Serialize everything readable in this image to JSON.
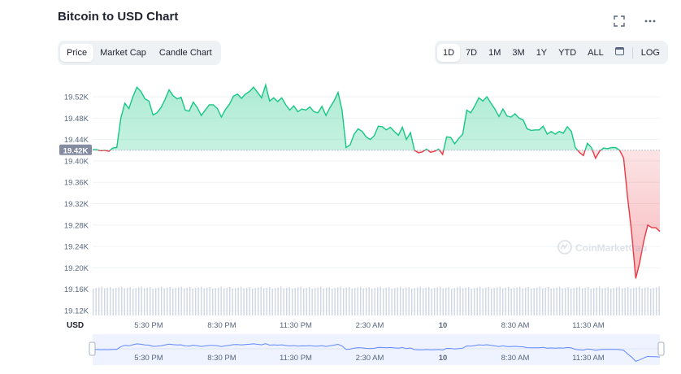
{
  "header": {
    "title": "Bitcoin to USD Chart"
  },
  "icons": {
    "fullscreen": "fullscreen-icon",
    "more": "more-options-icon",
    "calendar": "calendar-icon"
  },
  "tabs": [
    {
      "label": "Price",
      "active": true
    },
    {
      "label": "Market Cap",
      "active": false
    },
    {
      "label": "Candle Chart",
      "active": false
    }
  ],
  "ranges": [
    {
      "label": "1D",
      "active": true
    },
    {
      "label": "7D",
      "active": false
    },
    {
      "label": "1M",
      "active": false
    },
    {
      "label": "3M",
      "active": false
    },
    {
      "label": "1Y",
      "active": false
    },
    {
      "label": "YTD",
      "active": false
    },
    {
      "label": "ALL",
      "active": false
    }
  ],
  "log_label": "LOG",
  "watermark": "CoinMarketCap",
  "colors": {
    "up": "#16c784",
    "down": "#ea3943",
    "navigator": "#6188ff"
  },
  "chart_data": {
    "type": "line",
    "title": "Bitcoin to USD Chart",
    "ylabel": "USD",
    "baseline": 19420,
    "baseline_label": "19.42K",
    "y_ticks": [
      "19.52K",
      "19.48K",
      "19.44K",
      "19.40K",
      "19.36K",
      "19.32K",
      "19.28K",
      "19.24K",
      "19.20K",
      "19.16K",
      "19.12K"
    ],
    "x_ticks": [
      "5:30 PM",
      "8:30 PM",
      "11:30 PM",
      "2:30 AM",
      "10",
      "8:30 AM",
      "11:30 AM"
    ],
    "series": [
      {
        "y": [
          19421,
          19421,
          19419,
          19420,
          19418,
          19424,
          19425,
          19480,
          19508,
          19498,
          19520,
          19538,
          19530,
          19516,
          19512,
          19486,
          19490,
          19500,
          19515,
          19533,
          19522,
          19516,
          19519,
          19495,
          19493,
          19510,
          19500,
          19485,
          19495,
          19505,
          19505,
          19498,
          19482,
          19496,
          19506,
          19521,
          19525,
          19517,
          19525,
          19530,
          19538,
          19528,
          19518,
          19542,
          19512,
          19518,
          19511,
          19518,
          19505,
          19495,
          19503,
          19492,
          19497,
          19495,
          19501,
          19492,
          19490,
          19502,
          19485,
          19500,
          19512,
          19528,
          19495,
          19425,
          19430,
          19450,
          19460,
          19455,
          19445,
          19440,
          19447,
          19465,
          19464,
          19458,
          19463,
          19455,
          19448,
          19463,
          19440,
          19453,
          19420,
          19415,
          19417,
          19422,
          19416,
          19418,
          19422,
          19412,
          19445,
          19444,
          19432,
          19442,
          19450,
          19495,
          19490,
          19503,
          19518,
          19512,
          19520,
          19508,
          19497,
          19483,
          19497,
          19484,
          19482,
          19488,
          19480,
          19477,
          19460,
          19457,
          19458,
          19458,
          19465,
          19450,
          19455,
          19450,
          19455,
          19452,
          19464,
          19455,
          19425,
          19416,
          19410,
          19433,
          19425,
          19405,
          19418,
          19424,
          19423,
          19425,
          19425,
          19420,
          19405,
          19330,
          19265,
          19180,
          19210,
          19250,
          19280,
          19275,
          19275,
          19268
        ]
      }
    ]
  }
}
